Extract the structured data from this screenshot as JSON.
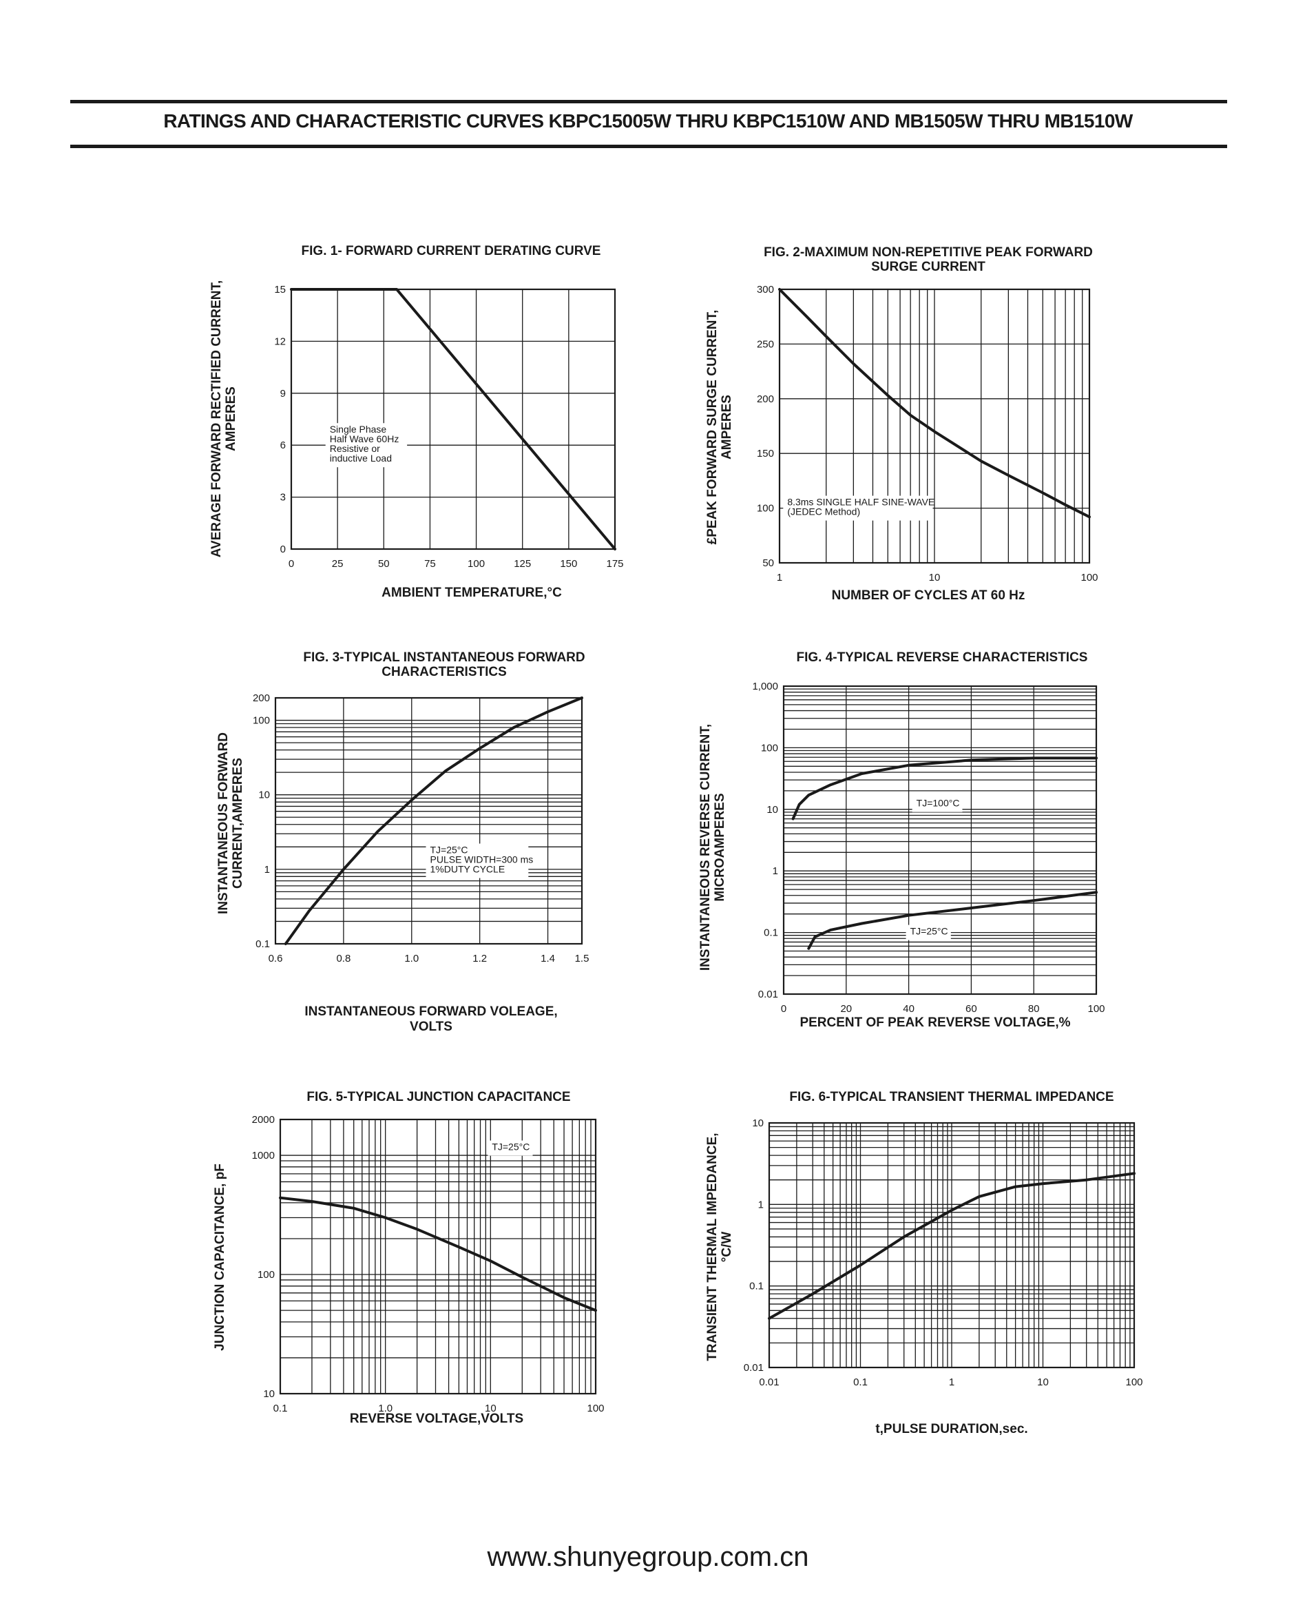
{
  "header": {
    "title": "RATINGS AND CHARACTERISTIC CURVES KBPC15005W THRU KBPC1510W AND MB1505W THRU MB1510W"
  },
  "footer": {
    "website": "www.shunyegroup.com.cn"
  },
  "chart_data": [
    {
      "id": "fig1",
      "type": "line",
      "title": [
        "FIG. 1- FORWARD CURRENT DERATING CURVE"
      ],
      "xlabel": [
        "AMBIENT TEMPERATURE,°C"
      ],
      "ylabel": [
        "AVERAGE FORWARD RECTIFIED CURRENT,",
        "AMPERES"
      ],
      "xscale": "linear",
      "yscale": "linear",
      "xlim": [
        0,
        175
      ],
      "ylim": [
        0,
        15
      ],
      "xticks": [
        0,
        25,
        50,
        75,
        100,
        125,
        150,
        175
      ],
      "yticks": [
        0,
        3,
        6,
        9,
        12,
        15
      ],
      "grid": true,
      "annotations": [
        {
          "lines": [
            "Single Phase",
            "Half Wave 60Hz",
            "Resistive or",
            "inductive Load"
          ],
          "x": 20,
          "y": 6
        }
      ],
      "series": [
        {
          "x": [
            0,
            57,
            175
          ],
          "y": [
            15,
            15,
            0
          ]
        }
      ]
    },
    {
      "id": "fig2",
      "type": "line",
      "title": [
        "FIG. 2-MAXIMUM NON-REPETITIVE PEAK FORWARD",
        "SURGE CURRENT"
      ],
      "xlabel": [
        "NUMBER OF CYCLES AT 60 Hz"
      ],
      "ylabel": [
        "£PEAK  FORWARD SURGE CURRENT,",
        "AMPERES"
      ],
      "xscale": "log",
      "yscale": "linear",
      "xlim": [
        1,
        100
      ],
      "ylim": [
        50,
        300
      ],
      "xticks": [
        1,
        10,
        100
      ],
      "yticks": [
        50,
        100,
        150,
        200,
        250,
        300
      ],
      "grid": true,
      "annotations": [
        {
          "lines": [
            "8.3ms SINGLE HALF SINE-WAVE",
            "(JEDEC Method)"
          ],
          "x": 1.1,
          "y": 100
        }
      ],
      "series": [
        {
          "x": [
            1,
            1.5,
            2,
            3,
            5,
            7,
            10,
            20,
            30,
            50,
            70,
            100
          ],
          "y": [
            300,
            275,
            257,
            232,
            203,
            185,
            170,
            143,
            130,
            114,
            103,
            92
          ]
        }
      ]
    },
    {
      "id": "fig3",
      "type": "line",
      "title": [
        "FIG. 3-TYPICAL INSTANTANEOUS FORWARD",
        "CHARACTERISTICS"
      ],
      "xlabel": [
        "INSTANTANEOUS FORWARD VOLEAGE,",
        "VOLTS"
      ],
      "ylabel": [
        "INSTANTANEOUS FORWARD",
        "CURRENT,AMPERES"
      ],
      "xscale": "linear",
      "yscale": "log",
      "xlim": [
        0.6,
        1.5
      ],
      "ylim": [
        0.1,
        200
      ],
      "xticks": [
        0.6,
        0.8,
        1.0,
        1.2,
        1.4,
        1.5
      ],
      "xtick_labels": [
        "0.6",
        "0.8",
        "1.0",
        "1.2",
        "1.4",
        "1.5"
      ],
      "yticks": [
        0.1,
        1,
        10,
        100,
        200
      ],
      "grid": true,
      "annotations": [
        {
          "lines": [
            "TJ=25°C",
            "PULSE WIDTH=300 ms",
            "1%DUTY CYCLE"
          ],
          "x": 1.05,
          "y": 1.3
        }
      ],
      "series": [
        {
          "x": [
            0.63,
            0.7,
            0.8,
            0.9,
            1.0,
            1.1,
            1.2,
            1.3,
            1.4,
            1.5
          ],
          "y": [
            0.1,
            0.28,
            1.0,
            3.2,
            8.5,
            21,
            42,
            80,
            130,
            200
          ]
        }
      ]
    },
    {
      "id": "fig4",
      "type": "line",
      "title": [
        "FIG. 4-TYPICAL REVERSE CHARACTERISTICS"
      ],
      "xlabel": [
        "PERCENT OF PEAK REVERSE VOLTAGE,%"
      ],
      "ylabel": [
        "INSTANTANEOUS REVERSE CURRENT,",
        "MICROAMPERES"
      ],
      "xscale": "linear",
      "yscale": "log",
      "xlim": [
        0,
        100
      ],
      "ylim": [
        0.01,
        1000
      ],
      "xticks": [
        0,
        20,
        40,
        60,
        80,
        100
      ],
      "yticks": [
        0.01,
        0.1,
        1,
        10,
        100,
        1000
      ],
      "ytick_labels": [
        "0.01",
        "0.1",
        "1",
        "10",
        "100",
        "1,000"
      ],
      "grid": true,
      "annotations": [
        {
          "lines": [
            "TJ=100°C"
          ],
          "x": 42,
          "y": 12
        },
        {
          "lines": [
            "TJ=25°C"
          ],
          "x": 40,
          "y": 0.1
        }
      ],
      "series": [
        {
          "name": "TJ=100°C",
          "x": [
            3,
            5,
            8,
            15,
            25,
            40,
            60,
            80,
            100
          ],
          "y": [
            7,
            12,
            17,
            25,
            38,
            52,
            63,
            68,
            68
          ]
        },
        {
          "name": "TJ=25°C",
          "x": [
            8,
            10,
            15,
            25,
            40,
            60,
            80,
            100
          ],
          "y": [
            0.055,
            0.085,
            0.11,
            0.14,
            0.19,
            0.25,
            0.33,
            0.45
          ]
        }
      ]
    },
    {
      "id": "fig5",
      "type": "line",
      "title": [
        "FIG. 5-TYPICAL JUNCTION CAPACITANCE"
      ],
      "xlabel": [
        "REVERSE VOLTAGE,VOLTS"
      ],
      "ylabel": [
        "JUNCTION CAPACITANCE, pF"
      ],
      "xscale": "log",
      "yscale": "log",
      "xlim": [
        0.1,
        100
      ],
      "ylim": [
        10,
        2000
      ],
      "xticks": [
        0.1,
        1,
        10,
        100
      ],
      "xtick_labels": [
        "0.1",
        "1.0",
        "10",
        "100"
      ],
      "yticks": [
        10,
        100,
        1000,
        2000
      ],
      "grid": true,
      "annotations": [
        {
          "lines": [
            "TJ=25°C"
          ],
          "x": 10,
          "y": 1150
        }
      ],
      "series": [
        {
          "x": [
            0.1,
            0.2,
            0.5,
            1,
            2,
            5,
            10,
            20,
            50,
            100
          ],
          "y": [
            440,
            410,
            360,
            300,
            240,
            170,
            130,
            95,
            64,
            50
          ]
        }
      ]
    },
    {
      "id": "fig6",
      "type": "line",
      "title": [
        "FIG. 6-TYPICAL TRANSIENT THERMAL IMPEDANCE"
      ],
      "xlabel": [
        "t,PULSE DURATION,sec."
      ],
      "ylabel": [
        "TRANSIENT THERMAL IMPEDANCE,",
        "°C/W"
      ],
      "xscale": "log",
      "yscale": "log",
      "xlim": [
        0.01,
        100
      ],
      "ylim": [
        0.01,
        10
      ],
      "xticks": [
        0.01,
        0.1,
        1,
        10,
        100
      ],
      "xtick_labels": [
        "0.01",
        "0.1",
        "1",
        "10",
        "100"
      ],
      "yticks": [
        0.01,
        0.1,
        1,
        10
      ],
      "ytick_labels": [
        "0.01",
        "0.1",
        "1",
        "10"
      ],
      "grid": true,
      "annotations": [],
      "series": [
        {
          "x": [
            0.01,
            0.03,
            0.1,
            0.3,
            1,
            2,
            5,
            10,
            30,
            100
          ],
          "y": [
            0.04,
            0.08,
            0.18,
            0.4,
            0.85,
            1.25,
            1.65,
            1.8,
            2.0,
            2.4
          ]
        }
      ]
    }
  ]
}
